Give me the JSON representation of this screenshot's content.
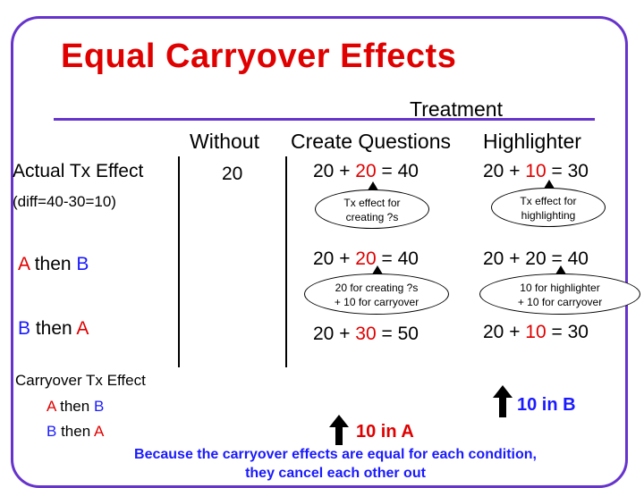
{
  "title": "Equal Carryover Effects",
  "header": {
    "treatment": "Treatment",
    "without": "Without",
    "create_questions": "Create Questions",
    "highlighter": "Highlighter"
  },
  "rows": {
    "actual": {
      "label": "Actual Tx Effect",
      "diff": "(diff=40-30=10)",
      "without_value": "20",
      "cq": {
        "a": "20",
        "plus": " + ",
        "b": "20",
        "rest": " = 40"
      },
      "hl": {
        "a": "20",
        "plus": " + ",
        "b": "10",
        "rest": " = 30"
      },
      "cq_bubble": [
        "Tx effect for",
        "creating ?s"
      ],
      "hl_bubble": [
        "Tx effect for",
        "highlighting"
      ]
    },
    "ab": {
      "label_a": "A",
      "label_then": " then ",
      "label_b": "B",
      "cq": {
        "a": "20",
        "plus": " + ",
        "b": "20",
        "rest": " = 40"
      },
      "hl": {
        "a": "20",
        "plus": " + ",
        "b": "20",
        "rest": " = 40"
      },
      "cq_bubble": [
        "20 for creating ?s",
        "+ 10 for carryover"
      ],
      "hl_bubble": [
        "10 for highlighter",
        "+ 10 for carryover"
      ]
    },
    "ba": {
      "label_b": "B",
      "label_then": " then ",
      "label_a": "A",
      "cq": {
        "a": "20",
        "plus": " + ",
        "b": "30",
        "rest": " = 50"
      },
      "hl": {
        "a": "20",
        "plus": " + ",
        "b": "10",
        "rest": " = 30"
      }
    }
  },
  "carryover": {
    "heading": "Carryover Tx Effect",
    "row1": {
      "a": "A",
      "then": " then ",
      "b": "B"
    },
    "row2": {
      "b": "B",
      "then": " then ",
      "a": "A"
    },
    "left_note": "10 in A",
    "right_note": "10 in B"
  },
  "footer": {
    "line1": "Because the carryover effects are equal for each condition,",
    "line2": "they cancel each other out"
  },
  "colors": {
    "frame": "#6633cc",
    "red": "#e00000",
    "blue": "#1a1aff"
  }
}
